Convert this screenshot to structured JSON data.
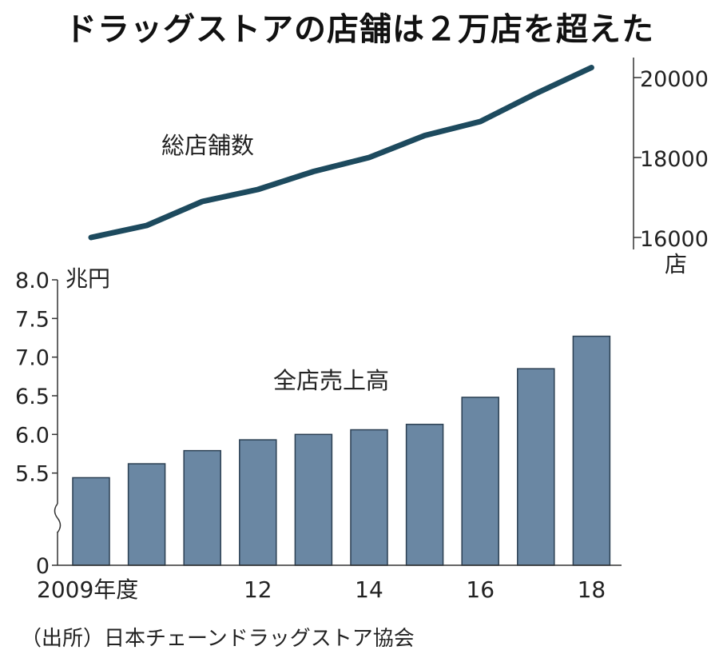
{
  "title": "ドラッグストアの店舗は２万店を超えた",
  "source": "（出所）日本チェーンドラッグストア協会",
  "chart_data": [
    {
      "type": "line",
      "series_label": "総店舗数",
      "x": [
        2009,
        2010,
        2011,
        2012,
        2013,
        2014,
        2015,
        2016,
        2017,
        2018
      ],
      "values": [
        16000,
        16300,
        16900,
        17200,
        17650,
        18000,
        18550,
        18900,
        19600,
        20250
      ],
      "yticks": [
        16000,
        18000,
        20000
      ],
      "ytick_labels": [
        "16000",
        "18000",
        "20000"
      ],
      "ylabel": "店",
      "ylim": [
        15700,
        20500
      ],
      "axis_position": "right",
      "color": "#1d4a5e"
    },
    {
      "type": "bar",
      "series_label": "全店売上高",
      "x": [
        2009,
        2010,
        2011,
        2012,
        2013,
        2014,
        2015,
        2016,
        2017,
        2018
      ],
      "values": [
        5.44,
        5.62,
        5.79,
        5.93,
        6.0,
        6.06,
        6.13,
        6.48,
        6.85,
        7.27
      ],
      "yticks": [
        5.5,
        6.0,
        6.5,
        7.0,
        7.5,
        8.0
      ],
      "ytick_labels": [
        "5.5",
        "6.0",
        "6.5",
        "7.0",
        "7.5",
        "8.0"
      ],
      "y_zero_label": "0",
      "ylabel": "兆円",
      "ylim": [
        5.0,
        8.0
      ],
      "axis_break": true,
      "xtick_labels": [
        {
          "x": 2009,
          "label": "2009年度"
        },
        {
          "x": 2012,
          "label": "12"
        },
        {
          "x": 2014,
          "label": "14"
        },
        {
          "x": 2016,
          "label": "16"
        },
        {
          "x": 2018,
          "label": "18"
        }
      ],
      "color": "#6a87a3"
    }
  ]
}
